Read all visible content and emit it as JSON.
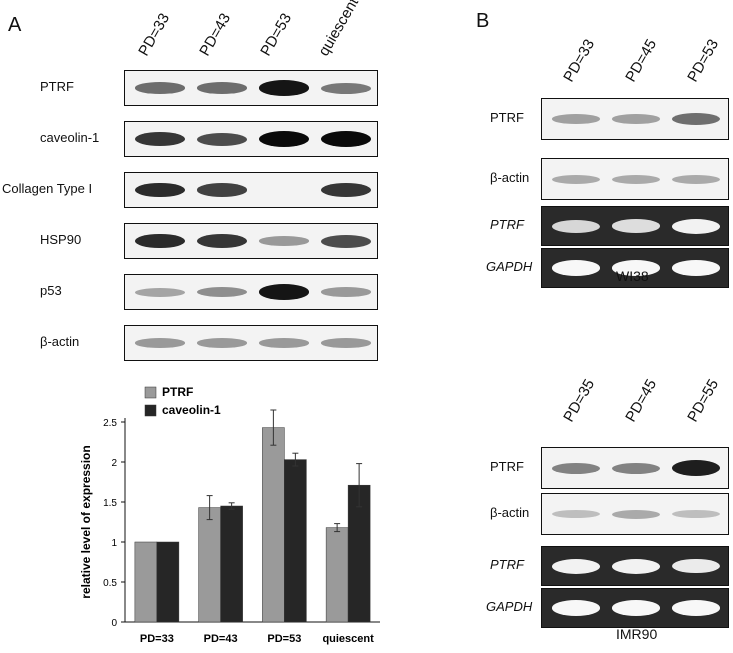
{
  "panel_a": {
    "letter": "A",
    "lanes": [
      "PD=33",
      "PD=43",
      "PD=53",
      "quiescent"
    ],
    "blots": [
      {
        "label": "PTRF",
        "intensity": [
          0.55,
          0.55,
          0.95,
          0.5
        ]
      },
      {
        "label": "caveolin-1",
        "intensity": [
          0.8,
          0.7,
          1.0,
          1.0
        ]
      },
      {
        "label": "Collagen Type I",
        "intensity": [
          0.85,
          0.75,
          0.0,
          0.8
        ]
      },
      {
        "label": "HSP90",
        "intensity": [
          0.85,
          0.8,
          0.35,
          0.7
        ]
      },
      {
        "label": "p53",
        "intensity": [
          0.3,
          0.4,
          0.95,
          0.35
        ]
      },
      {
        "label": "β-actin",
        "intensity": [
          0.35,
          0.35,
          0.35,
          0.35
        ]
      }
    ]
  },
  "panel_b": {
    "letter": "B",
    "groups": [
      {
        "cell_line": "WI38",
        "lanes": [
          "PD=33",
          "PD=45",
          "PD=53"
        ],
        "blots": [
          {
            "label": "PTRF",
            "italic": false,
            "gel": false,
            "intensity": [
              0.35,
              0.35,
              0.6
            ]
          },
          {
            "label": "β-actin",
            "italic": false,
            "gel": false,
            "intensity": [
              0.3,
              0.3,
              0.3
            ]
          },
          {
            "label": "PTRF",
            "italic": true,
            "gel": true,
            "intensity": [
              0.7,
              0.75,
              0.9
            ]
          },
          {
            "label": "GAPDH",
            "italic": true,
            "gel": true,
            "intensity": [
              0.95,
              0.95,
              0.95
            ]
          }
        ]
      },
      {
        "cell_line": "IMR90",
        "lanes": [
          "PD=35",
          "PD=45",
          "PD=55"
        ],
        "blots": [
          {
            "label": "PTRF",
            "italic": false,
            "gel": false,
            "intensity": [
              0.5,
              0.5,
              1.0
            ]
          },
          {
            "label": "β-actin",
            "italic": false,
            "gel": false,
            "intensity": [
              0.2,
              0.3,
              0.2
            ]
          },
          {
            "label": "PTRF",
            "italic": true,
            "gel": true,
            "intensity": [
              0.9,
              0.9,
              0.85
            ]
          },
          {
            "label": "GAPDH",
            "italic": true,
            "gel": true,
            "intensity": [
              0.95,
              0.95,
              0.95
            ]
          }
        ]
      }
    ]
  },
  "chart_data": {
    "type": "bar",
    "categories": [
      "PD=33",
      "PD=43",
      "PD=53",
      "quiescent"
    ],
    "series": [
      {
        "name": "PTRF",
        "values": [
          1.0,
          1.43,
          2.43,
          1.18
        ],
        "errors": [
          0,
          0.15,
          0.22,
          0.05
        ],
        "color": "#9a9a9a"
      },
      {
        "name": "caveolin-1",
        "values": [
          1.0,
          1.45,
          2.03,
          1.71
        ],
        "errors": [
          0,
          0.04,
          0.08,
          0.27
        ],
        "color": "#262626"
      }
    ],
    "ylabel": "relative level of expression",
    "yticks": [
      "0",
      "0.5",
      "1",
      "1.5",
      "2",
      "2.5"
    ],
    "ylim": [
      0,
      2.5
    ],
    "legend_placement": "top-left",
    "grid": false
  }
}
